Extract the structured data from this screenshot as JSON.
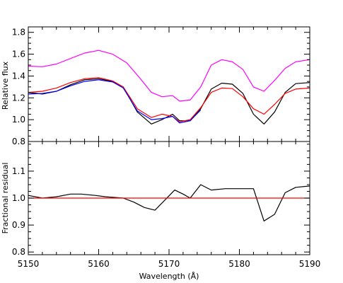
{
  "chart_data": [
    {
      "type": "line",
      "panel": "top",
      "title": "",
      "xlabel": "",
      "ylabel": "Relative flux",
      "xlim": [
        5150,
        5190
      ],
      "ylim": [
        0.8,
        1.85
      ],
      "grid": false,
      "x_ticks": [
        5150,
        5160,
        5170,
        5180,
        5190
      ],
      "y_ticks": [
        0.8,
        1.0,
        1.2,
        1.4,
        1.6,
        1.8
      ],
      "y_tick_labels": [
        "0.8",
        "1.0",
        "1.2",
        "1.4",
        "1.6",
        "1.8"
      ],
      "series": [
        {
          "color": "#ff00ff",
          "x": [
            5150,
            5152,
            5154,
            5156,
            5158,
            5160,
            5162,
            5164,
            5166,
            5167.5,
            5169,
            5170.5,
            5171.5,
            5173,
            5174.5,
            5176,
            5177.5,
            5179,
            5180.5,
            5182,
            5183.5,
            5185,
            5186.5,
            5188,
            5190
          ],
          "values": [
            1.49,
            1.485,
            1.51,
            1.56,
            1.61,
            1.635,
            1.6,
            1.52,
            1.37,
            1.25,
            1.21,
            1.22,
            1.17,
            1.18,
            1.3,
            1.5,
            1.55,
            1.53,
            1.46,
            1.3,
            1.26,
            1.36,
            1.47,
            1.53,
            1.55
          ]
        },
        {
          "color": "#000000",
          "x": [
            5150,
            5152,
            5154,
            5156,
            5158,
            5160,
            5162,
            5163.5,
            5165.5,
            5167.5,
            5169,
            5170.5,
            5171.5,
            5173,
            5174.5,
            5176,
            5177.5,
            5179,
            5180.5,
            5182,
            5183.5,
            5185,
            5186.5,
            5188,
            5190
          ],
          "values": [
            1.25,
            1.235,
            1.26,
            1.32,
            1.365,
            1.375,
            1.35,
            1.3,
            1.07,
            0.96,
            1.0,
            1.05,
            0.99,
            0.99,
            1.1,
            1.28,
            1.335,
            1.325,
            1.24,
            1.05,
            0.96,
            1.07,
            1.25,
            1.33,
            1.34
          ]
        },
        {
          "color": "#ff0000",
          "x": [
            5150,
            5152,
            5154,
            5156,
            5158,
            5160,
            5162,
            5163.5,
            5165.5,
            5167.5,
            5169,
            5170.5,
            5171.5,
            5173,
            5174.5,
            5176,
            5177.5,
            5179,
            5180.5,
            5182,
            5183.5,
            5185,
            5186.5,
            5188,
            5190
          ],
          "values": [
            1.25,
            1.26,
            1.29,
            1.34,
            1.375,
            1.385,
            1.355,
            1.3,
            1.1,
            1.02,
            1.05,
            1.03,
            0.98,
            1.0,
            1.11,
            1.25,
            1.29,
            1.285,
            1.21,
            1.1,
            1.05,
            1.14,
            1.24,
            1.28,
            1.29
          ]
        },
        {
          "color": "#0000ff",
          "x": [
            5150,
            5152,
            5154,
            5156,
            5158,
            5160,
            5162,
            5163.5,
            5165.5,
            5167.5,
            5169,
            5170.5,
            5171.5,
            5173,
            5174.5
          ],
          "values": [
            1.235,
            1.24,
            1.26,
            1.31,
            1.35,
            1.365,
            1.345,
            1.29,
            1.08,
            1.0,
            1.01,
            1.03,
            0.97,
            0.99,
            1.09
          ]
        }
      ]
    },
    {
      "type": "line",
      "panel": "bottom",
      "title": "",
      "xlabel": "Wavelength (Å)",
      "ylabel": "Fractional residual",
      "xlim": [
        5150,
        5190
      ],
      "ylim": [
        0.79,
        1.21
      ],
      "grid": false,
      "x_ticks": [
        5150,
        5160,
        5170,
        5180,
        5190
      ],
      "x_tick_labels": [
        "5150",
        "5160",
        "5170",
        "5180",
        "5190"
      ],
      "y_ticks": [
        0.8,
        0.9,
        1.0,
        1.1
      ],
      "y_tick_labels": [
        "0.8",
        "0.9",
        "1.0",
        "1.1"
      ],
      "series": [
        {
          "color": "#000000",
          "x": [
            5150,
            5152,
            5154,
            5156,
            5157.5,
            5159.5,
            5161,
            5163.5,
            5165,
            5166.5,
            5168,
            5169.5,
            5170.8,
            5172,
            5173,
            5174.5,
            5176,
            5178,
            5180,
            5182,
            5183.5,
            5185,
            5186.5,
            5188,
            5190
          ],
          "values": [
            1.01,
            1.0,
            1.005,
            1.015,
            1.015,
            1.01,
            1.005,
            1.0,
            0.985,
            0.965,
            0.955,
            0.995,
            1.03,
            1.015,
            1.0,
            1.05,
            1.03,
            1.035,
            1.035,
            1.035,
            0.915,
            0.94,
            1.02,
            1.04,
            1.045
          ]
        },
        {
          "color": "#ff0000",
          "x": [
            5150,
            5190
          ],
          "values": [
            1.0,
            1.0
          ]
        }
      ]
    }
  ]
}
